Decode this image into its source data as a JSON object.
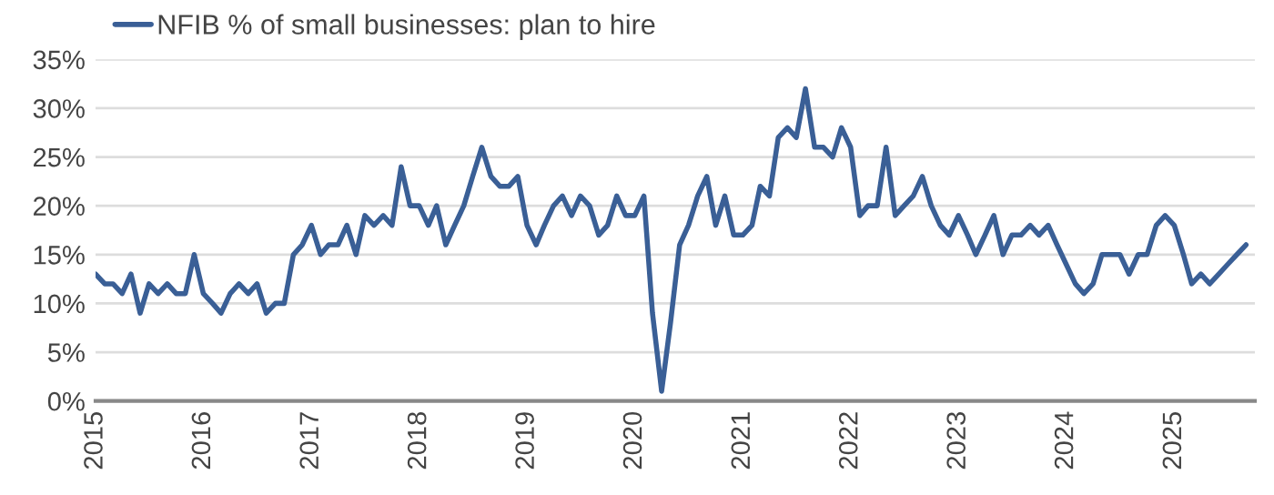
{
  "chart_data": {
    "type": "line",
    "x": [
      "2015-01",
      "2015-02",
      "2015-03",
      "2015-04",
      "2015-05",
      "2015-06",
      "2015-07",
      "2015-08",
      "2015-09",
      "2015-10",
      "2015-11",
      "2015-12",
      "2016-01",
      "2016-02",
      "2016-03",
      "2016-04",
      "2016-05",
      "2016-06",
      "2016-07",
      "2016-08",
      "2016-09",
      "2016-10",
      "2016-11",
      "2016-12",
      "2017-01",
      "2017-02",
      "2017-03",
      "2017-04",
      "2017-05",
      "2017-06",
      "2017-07",
      "2017-08",
      "2017-09",
      "2017-10",
      "2017-11",
      "2017-12",
      "2018-01",
      "2018-02",
      "2018-03",
      "2018-04",
      "2018-05",
      "2018-06",
      "2018-07",
      "2018-08",
      "2018-09",
      "2018-10",
      "2018-11",
      "2018-12",
      "2019-01",
      "2019-02",
      "2019-03",
      "2019-04",
      "2019-05",
      "2019-06",
      "2019-07",
      "2019-08",
      "2019-09",
      "2019-10",
      "2019-11",
      "2019-12",
      "2020-01",
      "2020-02",
      "2020-03",
      "2020-04",
      "2020-05",
      "2020-06",
      "2020-07",
      "2020-08",
      "2020-09",
      "2020-10",
      "2020-11",
      "2020-12",
      "2021-01",
      "2021-02",
      "2021-03",
      "2021-04",
      "2021-05",
      "2021-06",
      "2021-07",
      "2021-08",
      "2021-09",
      "2021-10",
      "2021-11",
      "2021-12",
      "2022-01",
      "2022-02",
      "2022-03",
      "2022-04",
      "2022-05",
      "2022-06",
      "2022-07",
      "2022-08",
      "2022-09",
      "2022-10",
      "2022-11",
      "2022-12",
      "2023-01",
      "2023-02",
      "2023-03",
      "2023-04",
      "2023-05",
      "2023-06",
      "2023-07",
      "2023-08",
      "2023-09",
      "2023-10",
      "2023-11",
      "2023-12",
      "2024-01",
      "2024-02",
      "2024-03",
      "2024-04",
      "2024-05",
      "2024-06",
      "2024-07",
      "2024-08",
      "2024-09",
      "2024-10",
      "2024-11",
      "2024-12",
      "2025-01",
      "2025-02",
      "2025-03",
      "2025-04",
      "2025-05",
      "2025-06",
      "2025-07",
      "2025-08",
      "2025-09"
    ],
    "series": [
      {
        "name": "NFIB % of small businesses: plan to hire",
        "color": "#3a5f96",
        "values": [
          13,
          12,
          12,
          11,
          13,
          9,
          12,
          11,
          12,
          11,
          11,
          15,
          11,
          10,
          9,
          11,
          12,
          11,
          12,
          9,
          10,
          10,
          15,
          16,
          18,
          15,
          16,
          16,
          18,
          15,
          19,
          18,
          19,
          18,
          24,
          20,
          20,
          18,
          20,
          16,
          18,
          20,
          23,
          26,
          23,
          22,
          22,
          23,
          18,
          16,
          18,
          20,
          21,
          19,
          21,
          20,
          17,
          18,
          21,
          19,
          19,
          21,
          9,
          1,
          8,
          16,
          18,
          21,
          23,
          18,
          21,
          17,
          17,
          18,
          22,
          21,
          27,
          28,
          27,
          32,
          26,
          26,
          25,
          28,
          26,
          19,
          20,
          20,
          26,
          19,
          20,
          21,
          23,
          20,
          18,
          17,
          19,
          17,
          15,
          17,
          19,
          15,
          17,
          17,
          18,
          17,
          18,
          16,
          14,
          12,
          11,
          12,
          15,
          15,
          15,
          13,
          15,
          15,
          18,
          19,
          18,
          15,
          12,
          13,
          12,
          13,
          14,
          15,
          16
        ]
      }
    ],
    "xlim": [
      "2015-01",
      "2025-10"
    ],
    "xticks": [
      {
        "value": "2015-01",
        "label": "2015"
      },
      {
        "value": "2016-01",
        "label": "2016"
      },
      {
        "value": "2017-01",
        "label": "2017"
      },
      {
        "value": "2018-01",
        "label": "2018"
      },
      {
        "value": "2019-01",
        "label": "2019"
      },
      {
        "value": "2020-01",
        "label": "2020"
      },
      {
        "value": "2021-01",
        "label": "2021"
      },
      {
        "value": "2022-01",
        "label": "2022"
      },
      {
        "value": "2023-01",
        "label": "2023"
      },
      {
        "value": "2024-01",
        "label": "2024"
      },
      {
        "value": "2025-01",
        "label": "2025"
      }
    ],
    "ylim": [
      0,
      35
    ],
    "yticks": [
      {
        "value": 0,
        "label": "0%"
      },
      {
        "value": 5,
        "label": "5%"
      },
      {
        "value": 10,
        "label": "10%"
      },
      {
        "value": 15,
        "label": "15%"
      },
      {
        "value": 20,
        "label": "20%"
      },
      {
        "value": 25,
        "label": "25%"
      },
      {
        "value": 30,
        "label": "30%"
      },
      {
        "value": 35,
        "label": "35%"
      }
    ],
    "grid": "y",
    "legend": "top left",
    "marker": "none",
    "line_style": "solid"
  }
}
